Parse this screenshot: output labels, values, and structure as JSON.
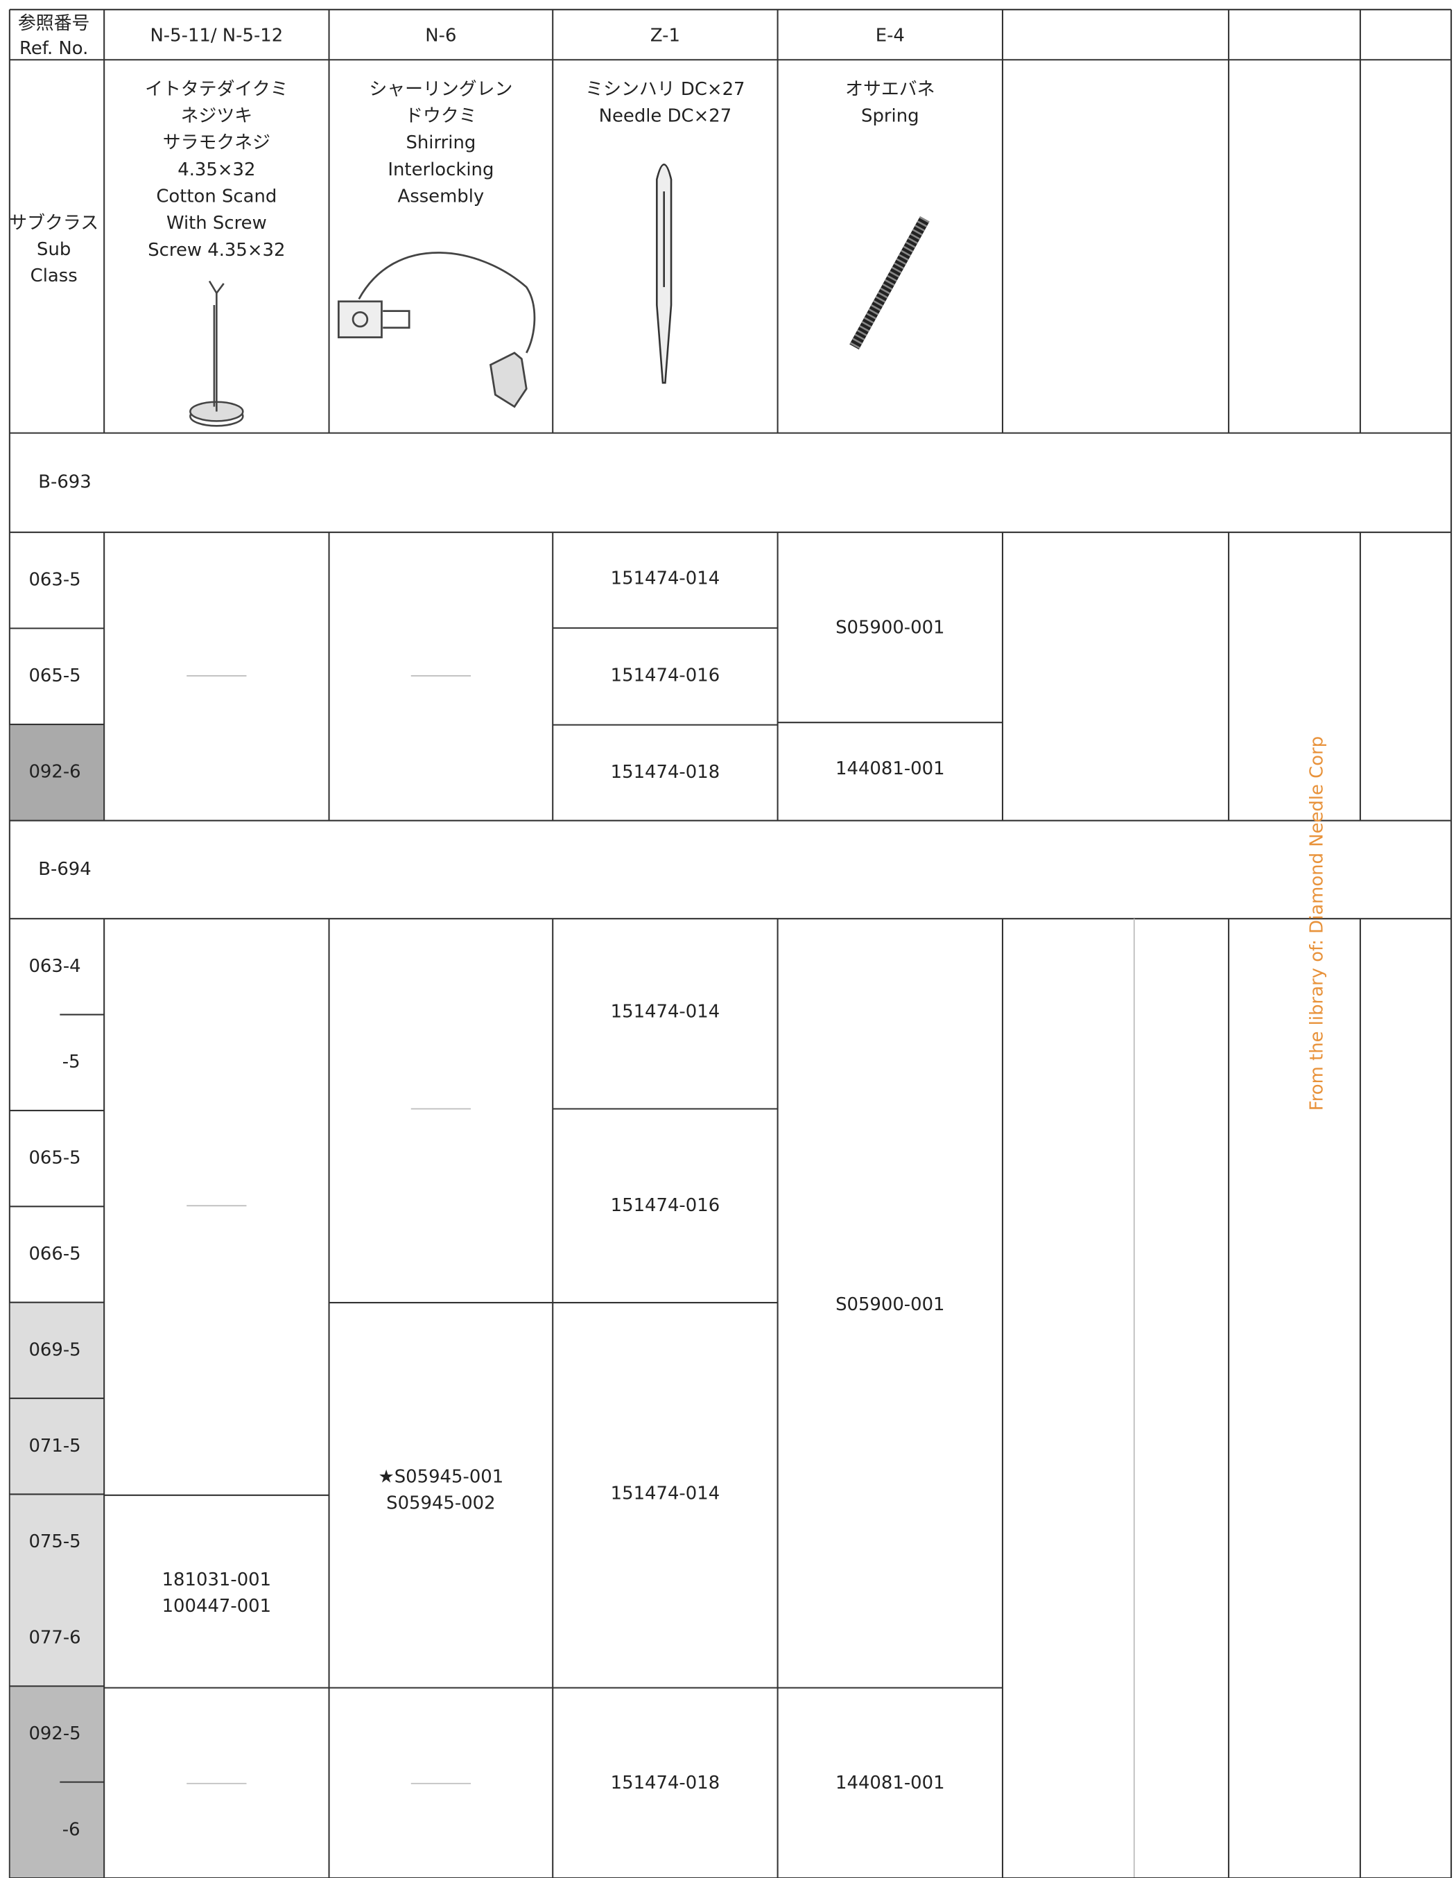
{
  "header": {
    "ref_no": [
      "参照番号",
      "Ref. No."
    ],
    "sub_class": [
      "サブクラス",
      "Sub",
      "Class"
    ],
    "columns": [
      {
        "code": "N-5-11/ N-5-12",
        "description": [
          "イトタテダイクミ",
          "ネジツキ",
          "サラモクネジ",
          "4.35×32",
          "Cotton Scand",
          "With Screw",
          "Screw 4.35×32"
        ]
      },
      {
        "code": "N-6",
        "description": [
          "シャーリングレン",
          "ドウクミ",
          "Shirring",
          "Interlocking",
          "Assembly"
        ]
      },
      {
        "code": "Z-1",
        "description": [
          "ミシンハリ DC×27",
          "Needle DC×27"
        ]
      },
      {
        "code": "E-4",
        "description": [
          "オサエバネ",
          "Spring"
        ]
      }
    ]
  },
  "sections": [
    {
      "model": "B-693",
      "rows": [
        "063-5",
        "065-5",
        "092-6"
      ],
      "parts": [
        [],
        [],
        [
          [
            "151474-014"
          ],
          [
            "151474-016"
          ],
          [
            "151474-018"
          ]
        ],
        [
          [
            "S05900-001"
          ],
          [
            "144081-001"
          ]
        ]
      ]
    },
    {
      "model": "B-694",
      "rows": [
        "063-4",
        "-5",
        "065-5",
        "066-5",
        "069-5",
        "071-5",
        "075-5",
        "077-6",
        "092-5",
        "-6"
      ],
      "parts": [
        [
          [
            "181031-001",
            "100447-001"
          ]
        ],
        [
          [
            "★S05945-001",
            "S05945-002"
          ]
        ],
        [
          [
            "151474-014"
          ],
          [
            "151474-016"
          ],
          [
            "151474-014"
          ],
          [
            "151474-018"
          ]
        ],
        [
          [
            "S05900-001"
          ],
          [
            "144081-001"
          ]
        ]
      ]
    }
  ],
  "watermark": "From the library of: Diamond Needle Corp"
}
